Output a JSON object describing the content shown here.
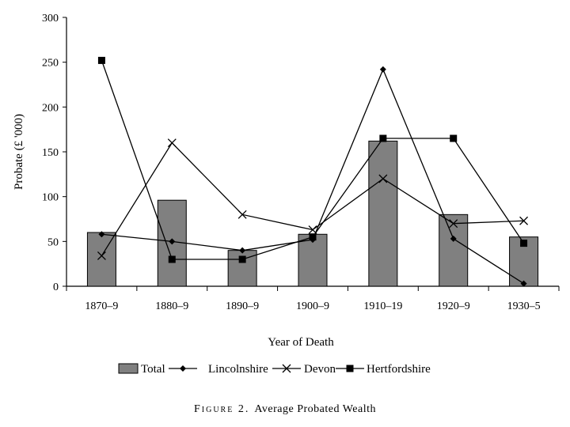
{
  "chart_data": {
    "type": "bar+line",
    "categories": [
      "1870–9",
      "1880–9",
      "1890–9",
      "1900–9",
      "1910–19",
      "1920–9",
      "1930–5"
    ],
    "series": [
      {
        "name": "Total",
        "kind": "bar",
        "color": "#808080",
        "values": [
          60,
          96,
          40,
          58,
          162,
          80,
          55
        ]
      },
      {
        "name": "Lincolnshire",
        "kind": "line",
        "marker": "diamond",
        "values": [
          58,
          50,
          40,
          52,
          242,
          53,
          3
        ]
      },
      {
        "name": "Devon",
        "kind": "line",
        "marker": "x",
        "values": [
          34,
          160,
          80,
          63,
          120,
          70,
          73
        ]
      },
      {
        "name": "Hertfordshire",
        "kind": "line",
        "marker": "square",
        "values": [
          252,
          30,
          30,
          55,
          165,
          165,
          48
        ]
      }
    ],
    "xlabel": "Year of Death",
    "ylabel": "Probate (£ '000)",
    "ylim": [
      0,
      300
    ],
    "yticks": [
      0,
      50,
      100,
      150,
      200,
      250,
      300
    ],
    "grid": false,
    "legend": "bottom"
  },
  "caption": {
    "label": "Figure 2.",
    "text": "Average Probated Wealth"
  }
}
